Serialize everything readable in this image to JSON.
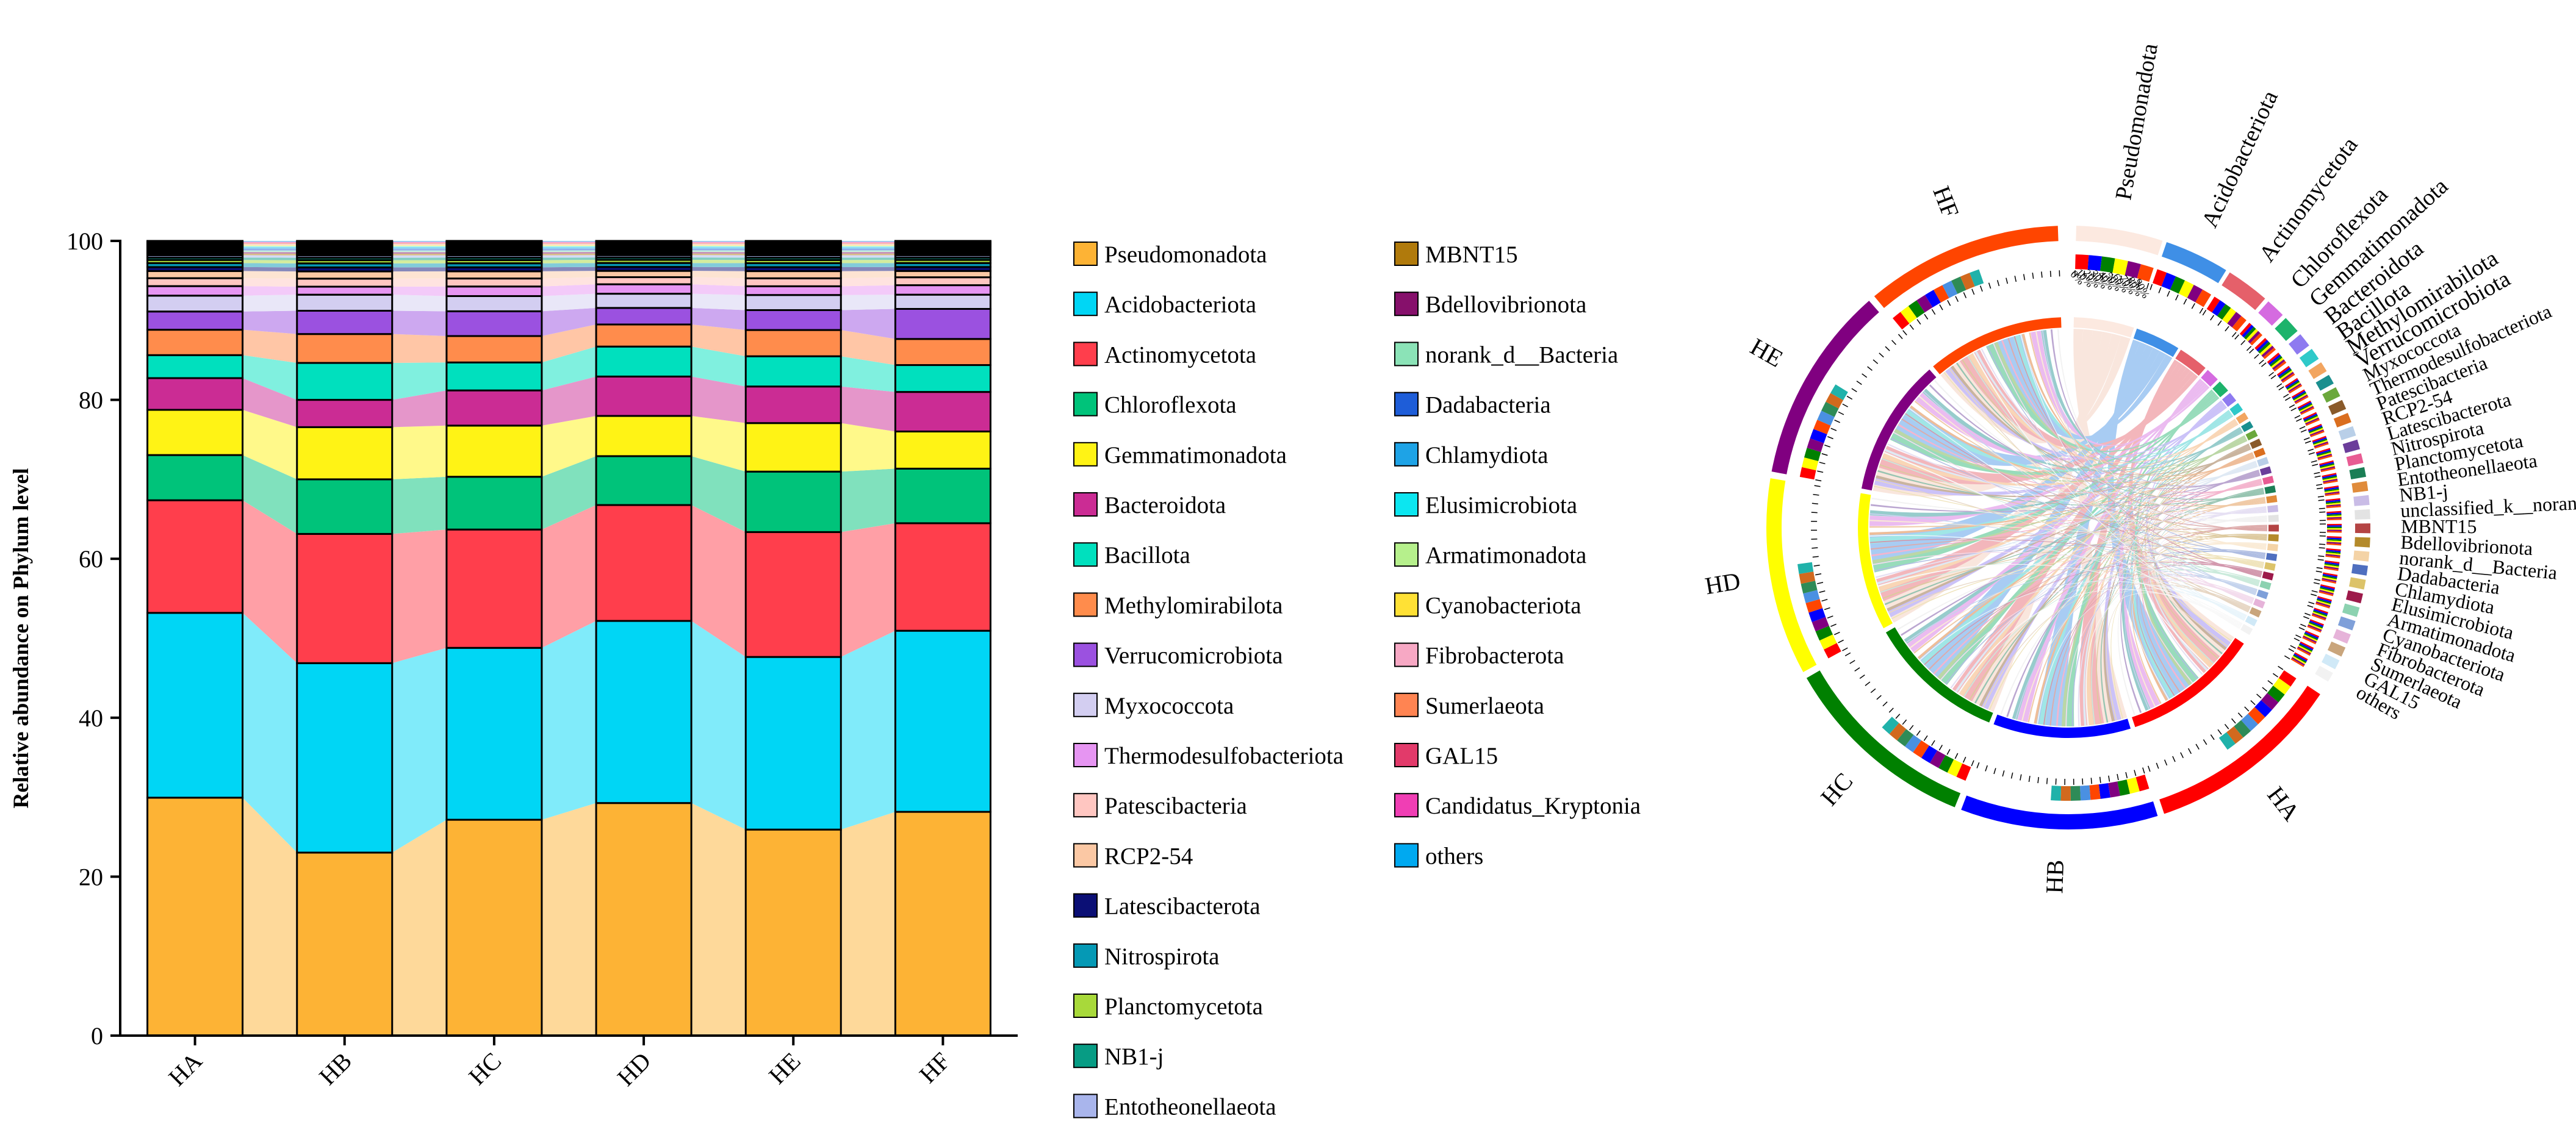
{
  "chart_data": [
    {
      "type": "stacked_bar",
      "ylabel": "Relative abundance on Phylum level",
      "ylim": [
        0,
        100
      ],
      "yticks": [
        0,
        20,
        40,
        60,
        80,
        100
      ],
      "categories": [
        "HA",
        "HB",
        "HC",
        "HD",
        "HE",
        "HF"
      ],
      "series": [
        {
          "name": "Pseudomonadota",
          "color": "#FDB335",
          "values": [
            30.0,
            22.8,
            27.0,
            29.5,
            25.9,
            28.3
          ]
        },
        {
          "name": "Acidobacteriota",
          "color": "#00D6F5",
          "values": [
            23.3,
            23.6,
            21.5,
            23.1,
            21.7,
            22.9
          ]
        },
        {
          "name": "Actinomycetota",
          "color": "#FF3E4C",
          "values": [
            14.2,
            16.1,
            14.8,
            14.7,
            15.7,
            13.6
          ]
        },
        {
          "name": "Chloroflexota",
          "color": "#00C37A",
          "values": [
            5.7,
            6.8,
            6.6,
            6.2,
            7.6,
            6.9
          ]
        },
        {
          "name": "Gemmatimonadota",
          "color": "#FFF315",
          "values": [
            5.7,
            6.5,
            6.4,
            5.1,
            6.1,
            4.7
          ]
        },
        {
          "name": "Bacteroidota",
          "color": "#CB2C94",
          "values": [
            4.0,
            3.4,
            4.4,
            5.0,
            4.6,
            5.0
          ]
        },
        {
          "name": "Bacillota",
          "color": "#00E0BE",
          "values": [
            2.9,
            4.6,
            3.5,
            3.8,
            3.8,
            3.4
          ]
        },
        {
          "name": "Methylomirabilota",
          "color": "#FF8C4C",
          "values": [
            3.2,
            3.6,
            3.3,
            2.8,
            3.3,
            3.3
          ]
        },
        {
          "name": "Verrucomicrobiota",
          "color": "#9B51E0",
          "values": [
            2.3,
            2.9,
            3.1,
            2.1,
            2.5,
            3.8
          ]
        },
        {
          "name": "Myxococcota",
          "color": "#D3CEF1",
          "values": [
            2.0,
            2.0,
            1.9,
            1.8,
            1.9,
            1.8
          ]
        },
        {
          "name": "Thermodesulfobacteriota",
          "color": "#E695F2",
          "values": [
            1.2,
            1.0,
            1.2,
            1.2,
            1.1,
            1.2
          ]
        },
        {
          "name": "Patescibacteria",
          "color": "#FFC6C1",
          "values": [
            1.0,
            1.0,
            1.0,
            0.9,
            1.0,
            1.0
          ]
        },
        {
          "name": "RCP2-54",
          "color": "#FBC8A4",
          "values": [
            0.9,
            0.9,
            0.9,
            0.8,
            0.9,
            0.8
          ]
        },
        {
          "name": "Latescibacterota",
          "color": "#0B0F75",
          "values": [
            0.5,
            0.5,
            0.5,
            0.5,
            0.5,
            0.5
          ]
        },
        {
          "name": "Nitrospirota",
          "color": "#0599B5",
          "values": [
            0.5,
            0.5,
            0.5,
            0.5,
            0.5,
            0.5
          ]
        },
        {
          "name": "Planctomycetota",
          "color": "#A8D93A",
          "values": [
            0.4,
            0.4,
            0.4,
            0.4,
            0.4,
            0.4
          ]
        },
        {
          "name": "NB1-j",
          "color": "#079C84",
          "values": [
            0.3,
            0.3,
            0.3,
            0.3,
            0.3,
            0.3
          ]
        },
        {
          "name": "Entotheonellaeota",
          "color": "#A9B5EC",
          "values": [
            0.3,
            0.3,
            0.3,
            0.3,
            0.3,
            0.3
          ]
        },
        {
          "name": "MBNT15",
          "color": "#B07A0C",
          "values": [
            0.2,
            0.2,
            0.2,
            0.2,
            0.2,
            0.2
          ]
        },
        {
          "name": "Bdellovibrionota",
          "color": "#86106B",
          "values": [
            0.2,
            0.2,
            0.2,
            0.2,
            0.2,
            0.2
          ]
        },
        {
          "name": "norank_d__Bacteria",
          "color": "#8BE3B7",
          "values": [
            0.2,
            0.2,
            0.2,
            0.2,
            0.2,
            0.2
          ]
        },
        {
          "name": "Dadabacteria",
          "color": "#1E5DD8",
          "values": [
            0.2,
            0.2,
            0.2,
            0.2,
            0.2,
            0.2
          ]
        },
        {
          "name": "Chlamydiota",
          "color": "#1EA3E6",
          "values": [
            0.2,
            0.2,
            0.2,
            0.2,
            0.2,
            0.2
          ]
        },
        {
          "name": "Elusimicrobiota",
          "color": "#0CE6F0",
          "values": [
            0.1,
            0.1,
            0.1,
            0.1,
            0.1,
            0.1
          ]
        },
        {
          "name": "Armatimonadota",
          "color": "#B6F08C",
          "values": [
            0.1,
            0.1,
            0.1,
            0.1,
            0.1,
            0.1
          ]
        },
        {
          "name": "Cyanobacteriota",
          "color": "#FFE135",
          "values": [
            0.1,
            0.1,
            0.1,
            0.1,
            0.1,
            0.1
          ]
        },
        {
          "name": "Fibrobacterota",
          "color": "#F7A8C4",
          "values": [
            0.1,
            0.1,
            0.1,
            0.1,
            0.1,
            0.1
          ]
        },
        {
          "name": "Sumerlaeota",
          "color": "#FF8452",
          "values": [
            0.1,
            0.1,
            0.1,
            0.1,
            0.1,
            0.1
          ]
        },
        {
          "name": "GAL15",
          "color": "#E23A6A",
          "values": [
            0.1,
            0.1,
            0.1,
            0.1,
            0.1,
            0.1
          ]
        },
        {
          "name": "Candidatus_Kryptonia",
          "color": "#F03EB4",
          "values": [
            0.1,
            0.1,
            0.1,
            0.1,
            0.1,
            0.1
          ]
        },
        {
          "name": "others",
          "color": "#00A9F0",
          "values": [
            0.1,
            0.1,
            0.1,
            0.1,
            0.1,
            0.1
          ]
        }
      ]
    },
    {
      "type": "chord",
      "samples": [
        {
          "name": "HA",
          "color": "#FF0000"
        },
        {
          "name": "HB",
          "color": "#0000FF"
        },
        {
          "name": "HC",
          "color": "#008000"
        },
        {
          "name": "HD",
          "color": "#FFFF00"
        },
        {
          "name": "HE",
          "color": "#800080"
        },
        {
          "name": "HF",
          "color": "#FF4500"
        }
      ],
      "taxa": [
        {
          "name": "Pseudomonadota",
          "color": "#FCE9E0",
          "weight": 16.0
        },
        {
          "name": "Acidobacteriota",
          "color": "#3F8FE6",
          "weight": 12.0
        },
        {
          "name": "Actinomycetota",
          "color": "#E5606A",
          "weight": 8.0
        },
        {
          "name": "Chloroflexota",
          "color": "#D56BE0",
          "weight": 3.6
        },
        {
          "name": "Gemmatimonadota",
          "color": "#1DB36B",
          "weight": 3.2
        },
        {
          "name": "Bacteroidota",
          "color": "#8E7AF0",
          "weight": 2.6
        },
        {
          "name": "Bacillota",
          "color": "#2EC9C9",
          "weight": 2.2
        },
        {
          "name": "Methylomirabilota",
          "color": "#F2A560",
          "weight": 1.9
        },
        {
          "name": "Verrucomicrobiota",
          "color": "#1A8F8F",
          "weight": 1.8
        },
        {
          "name": "Myxococcota",
          "color": "#6BA83C",
          "weight": 1.2
        },
        {
          "name": "Thermodesulfobacteriota",
          "color": "#8A5A2A",
          "weight": 1.0
        },
        {
          "name": "Patescibacteria",
          "color": "#DA6E1F",
          "weight": 0.9
        },
        {
          "name": "RCP2-54",
          "color": "#B9CFE8",
          "weight": 0.8
        },
        {
          "name": "Latescibacterota",
          "color": "#6B3D9A",
          "weight": 0.6
        },
        {
          "name": "Nitrospirota",
          "color": "#E85C93",
          "weight": 0.6
        },
        {
          "name": "Planctomycetota",
          "color": "#1B7E55",
          "weight": 0.55
        },
        {
          "name": "Entotheonellaeota",
          "color": "#E08B3B",
          "weight": 0.5
        },
        {
          "name": "NB1-j",
          "color": "#C9BCE6",
          "weight": 0.5
        },
        {
          "name": "unclassified_k__norank_d__Bacteria",
          "color": "#E3E3E3",
          "weight": 0.5
        },
        {
          "name": "MBNT15",
          "color": "#B44444",
          "weight": 0.45
        },
        {
          "name": "Bdellovibrionota",
          "color": "#B48A2A",
          "weight": 0.45
        },
        {
          "name": "norank_d__Bacteria",
          "color": "#F4D3A6",
          "weight": 0.45
        },
        {
          "name": "Dadabacteria",
          "color": "#4F6FBF",
          "weight": 0.4
        },
        {
          "name": "Chlamydiota",
          "color": "#DCC36A",
          "weight": 0.4
        },
        {
          "name": "Elusimicrobiota",
          "color": "#9D1A4A",
          "weight": 0.4
        },
        {
          "name": "Armatimonadota",
          "color": "#8CD2B0",
          "weight": 0.4
        },
        {
          "name": "Cyanobacteriota",
          "color": "#7FA0D9",
          "weight": 0.4
        },
        {
          "name": "Fibrobacterota",
          "color": "#E6B3D9",
          "weight": 0.4
        },
        {
          "name": "Sumerlaeota",
          "color": "#C9A57C",
          "weight": 0.4
        },
        {
          "name": "GAL15",
          "color": "#D0E9F7",
          "weight": 0.4
        },
        {
          "name": "others",
          "color": "#F2F2F2",
          "weight": 0.5
        }
      ],
      "pct_labels": [
        "0%",
        "10%",
        "20%",
        "30%",
        "40%",
        "50%",
        "60%",
        "70%",
        "80%",
        "90%"
      ]
    }
  ]
}
